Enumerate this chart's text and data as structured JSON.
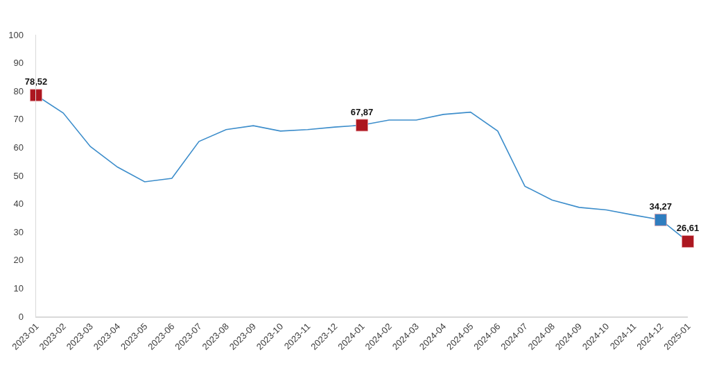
{
  "chart_data": {
    "type": "line",
    "categories": [
      "2023-01",
      "2023-02",
      "2023-03",
      "2023-04",
      "2023-05",
      "2023-06",
      "2023-07",
      "2023-08",
      "2023-09",
      "2023-10",
      "2023-11",
      "2023-12",
      "2024-01",
      "2024-02",
      "2024-03",
      "2024-04",
      "2024-05",
      "2024-06",
      "2024-07",
      "2024-08",
      "2024-09",
      "2024-10",
      "2024-11",
      "2024-12",
      "2025-01"
    ],
    "series": [
      {
        "color": "#3c8dcb",
        "marker": "none",
        "line_style": "solid",
        "values": [
          78.5,
          72.2,
          60.3,
          53.0,
          47.8,
          49.0,
          62.1,
          66.3,
          67.7,
          65.8,
          66.3,
          67.2,
          67.9,
          69.7,
          69.7,
          71.7,
          72.5,
          65.8,
          46.2,
          41.3,
          38.7,
          37.8,
          36.0,
          34.3,
          26.6
        ]
      },
      {
        "type": "scatter",
        "color": "#ac1720",
        "marker": "square",
        "values": [
          78.52,
          null,
          null,
          null,
          null,
          null,
          null,
          null,
          null,
          null,
          null,
          null,
          67.87,
          null,
          null,
          null,
          null,
          null,
          null,
          null,
          null,
          null,
          null,
          null,
          26.61
        ],
        "value_labels": [
          "78,52",
          null,
          null,
          null,
          null,
          null,
          null,
          null,
          null,
          null,
          null,
          null,
          "67,87",
          null,
          null,
          null,
          null,
          null,
          null,
          null,
          null,
          null,
          null,
          null,
          "26,61"
        ]
      },
      {
        "type": "scatter",
        "color": "#2f7dbf",
        "marker": "square",
        "values": [
          null,
          null,
          null,
          null,
          null,
          null,
          null,
          null,
          null,
          null,
          null,
          null,
          null,
          null,
          null,
          null,
          null,
          null,
          null,
          null,
          null,
          null,
          null,
          34.27,
          null
        ],
        "value_labels": [
          null,
          null,
          null,
          null,
          null,
          null,
          null,
          null,
          null,
          null,
          null,
          null,
          null,
          null,
          null,
          null,
          null,
          null,
          null,
          null,
          null,
          null,
          null,
          "34,27",
          null
        ]
      }
    ],
    "ylim": [
      0,
      100
    ],
    "yticks": [
      0,
      10,
      20,
      30,
      40,
      50,
      60,
      70,
      80,
      90,
      100
    ],
    "grid": false
  }
}
